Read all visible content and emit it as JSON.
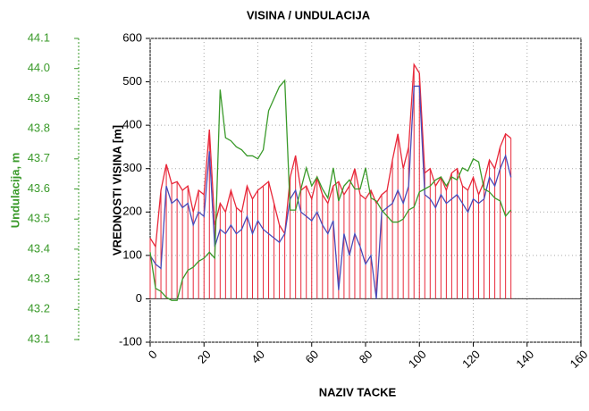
{
  "chart_data": {
    "type": "line",
    "title": "VISINA / UNDULACIJA",
    "x_label": "NAZIV TACKE",
    "y_label": "VREDNOSTI VISINA [m]",
    "y2_label": "Undulacija, m",
    "xlim": [
      0,
      160
    ],
    "xticks": [
      0,
      20,
      40,
      60,
      80,
      100,
      120,
      140,
      160
    ],
    "ylim": [
      -100,
      600
    ],
    "yticks": [
      -100,
      0,
      100,
      200,
      300,
      400,
      500,
      600
    ],
    "y2lim": [
      43.1,
      44.1
    ],
    "y2ticks": [
      43.1,
      43.2,
      43.3,
      43.4,
      43.5,
      43.6,
      43.7,
      43.8,
      43.9,
      {
        "value": 44,
        "label": "44.0"
      },
      44.1
    ],
    "grid": true,
    "x": [
      0,
      2,
      4,
      6,
      8,
      10,
      12,
      14,
      16,
      18,
      20,
      22,
      24,
      26,
      28,
      30,
      32,
      34,
      36,
      38,
      40,
      42,
      44,
      46,
      48,
      50,
      52,
      54,
      56,
      58,
      60,
      62,
      64,
      66,
      68,
      70,
      72,
      74,
      76,
      78,
      80,
      82,
      84,
      86,
      88,
      90,
      92,
      94,
      96,
      98,
      100,
      102,
      104,
      106,
      108,
      110,
      112,
      114,
      116,
      118,
      120,
      122,
      124,
      126,
      128,
      130,
      132,
      134
    ],
    "series": [
      {
        "color": "#e8283a",
        "style": "impulse",
        "values": [
          140,
          120,
          250,
          310,
          265,
          270,
          250,
          260,
          200,
          250,
          240,
          390,
          170,
          220,
          200,
          250,
          210,
          200,
          260,
          230,
          250,
          260,
          270,
          220,
          170,
          150,
          280,
          330,
          250,
          260,
          230,
          280,
          240,
          220,
          260,
          270,
          240,
          260,
          300,
          240,
          230,
          250,
          220,
          240,
          250,
          320,
          380,
          300,
          350,
          540,
          520,
          290,
          300,
          260,
          280,
          250,
          290,
          300,
          260,
          250,
          280,
          240,
          270,
          320,
          300,
          350,
          380,
          370
        ]
      },
      {
        "color": "#4a4ab8",
        "values": [
          100,
          80,
          70,
          260,
          220,
          230,
          210,
          220,
          170,
          200,
          190,
          340,
          120,
          160,
          150,
          170,
          150,
          160,
          190,
          150,
          180,
          160,
          150,
          140,
          130,
          150,
          230,
          250,
          200,
          190,
          180,
          200,
          170,
          150,
          180,
          20,
          150,
          100,
          150,
          120,
          80,
          100,
          0,
          200,
          210,
          220,
          250,
          220,
          260,
          490,
          490,
          240,
          230,
          210,
          240,
          220,
          230,
          240,
          220,
          200,
          230,
          220,
          230,
          280,
          260,
          300,
          330,
          280
        ]
      },
      {
        "color": "#3a9a2a",
        "axis": "y2",
        "values": [
          43.39,
          43.27,
          43.26,
          43.24,
          43.23,
          43.23,
          43.3,
          43.33,
          43.34,
          43.36,
          43.37,
          43.39,
          43.37,
          43.93,
          43.77,
          43.76,
          43.74,
          43.73,
          43.71,
          43.71,
          43.7,
          43.73,
          43.86,
          43.9,
          43.94,
          43.96,
          43.53,
          43.53,
          43.6,
          43.67,
          43.61,
          43.64,
          43.6,
          43.57,
          43.67,
          43.56,
          43.61,
          43.63,
          43.6,
          43.6,
          43.67,
          43.57,
          43.56,
          43.53,
          43.51,
          43.49,
          43.49,
          43.5,
          43.53,
          43.54,
          43.59,
          43.6,
          43.61,
          43.63,
          43.64,
          43.61,
          43.64,
          43.63,
          43.67,
          43.66,
          43.7,
          43.69,
          43.6,
          43.59,
          43.57,
          43.56,
          43.51,
          43.53
        ]
      }
    ]
  }
}
